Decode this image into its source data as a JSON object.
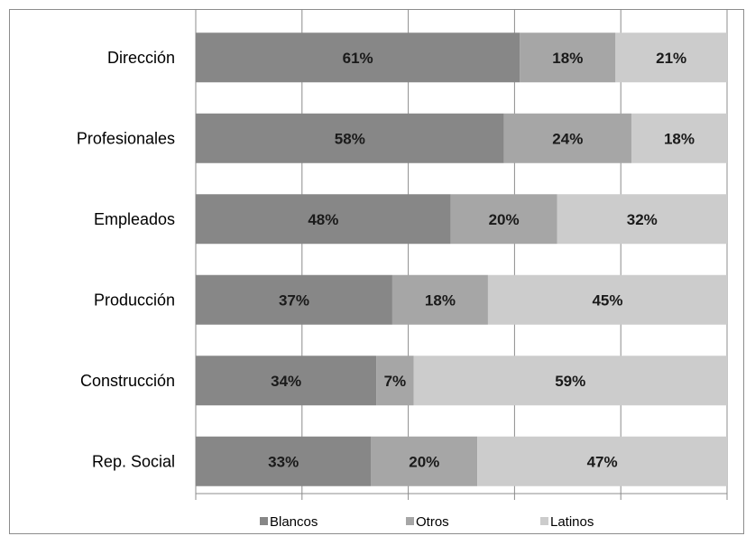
{
  "chart_data": {
    "type": "bar",
    "orientation": "horizontal",
    "stacked": true,
    "percent": true,
    "title": "",
    "xlabel": "",
    "ylabel": "",
    "xlim": [
      0,
      100
    ],
    "grid": true,
    "legend_position": "bottom",
    "categories": [
      "Dirección",
      "Profesionales",
      "Empleados",
      "Producción",
      "Construcción",
      "Rep. Social"
    ],
    "series": [
      {
        "name": "Blancos",
        "color": "#878787",
        "values": [
          61,
          58,
          48,
          37,
          34,
          33
        ]
      },
      {
        "name": "Otros",
        "color": "#a6a6a6",
        "values": [
          18,
          24,
          20,
          18,
          7,
          20
        ]
      },
      {
        "name": "Latinos",
        "color": "#cccccc",
        "values": [
          21,
          18,
          32,
          45,
          59,
          47
        ]
      }
    ]
  }
}
